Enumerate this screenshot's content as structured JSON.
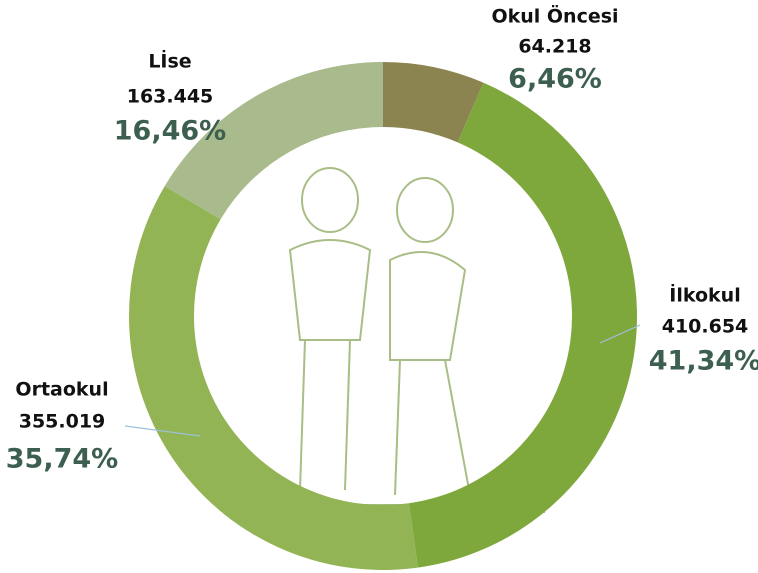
{
  "chart_data": {
    "type": "donut",
    "categories": [
      "Okul Öncesi",
      "İlkokul",
      "Ortaokul",
      "Lİse"
    ],
    "series": [
      {
        "values": [
          64218,
          410654,
          355019,
          163445
        ],
        "value_labels": [
          "64.218",
          "410.654",
          "355.019",
          "163.445"
        ],
        "percent_labels": [
          "6,46%",
          "41,34%",
          "35,74%",
          "16,46%"
        ],
        "colors": [
          "#8b8450",
          "#7fa83c",
          "#93b455",
          "#a9bb8c"
        ]
      }
    ]
  }
}
